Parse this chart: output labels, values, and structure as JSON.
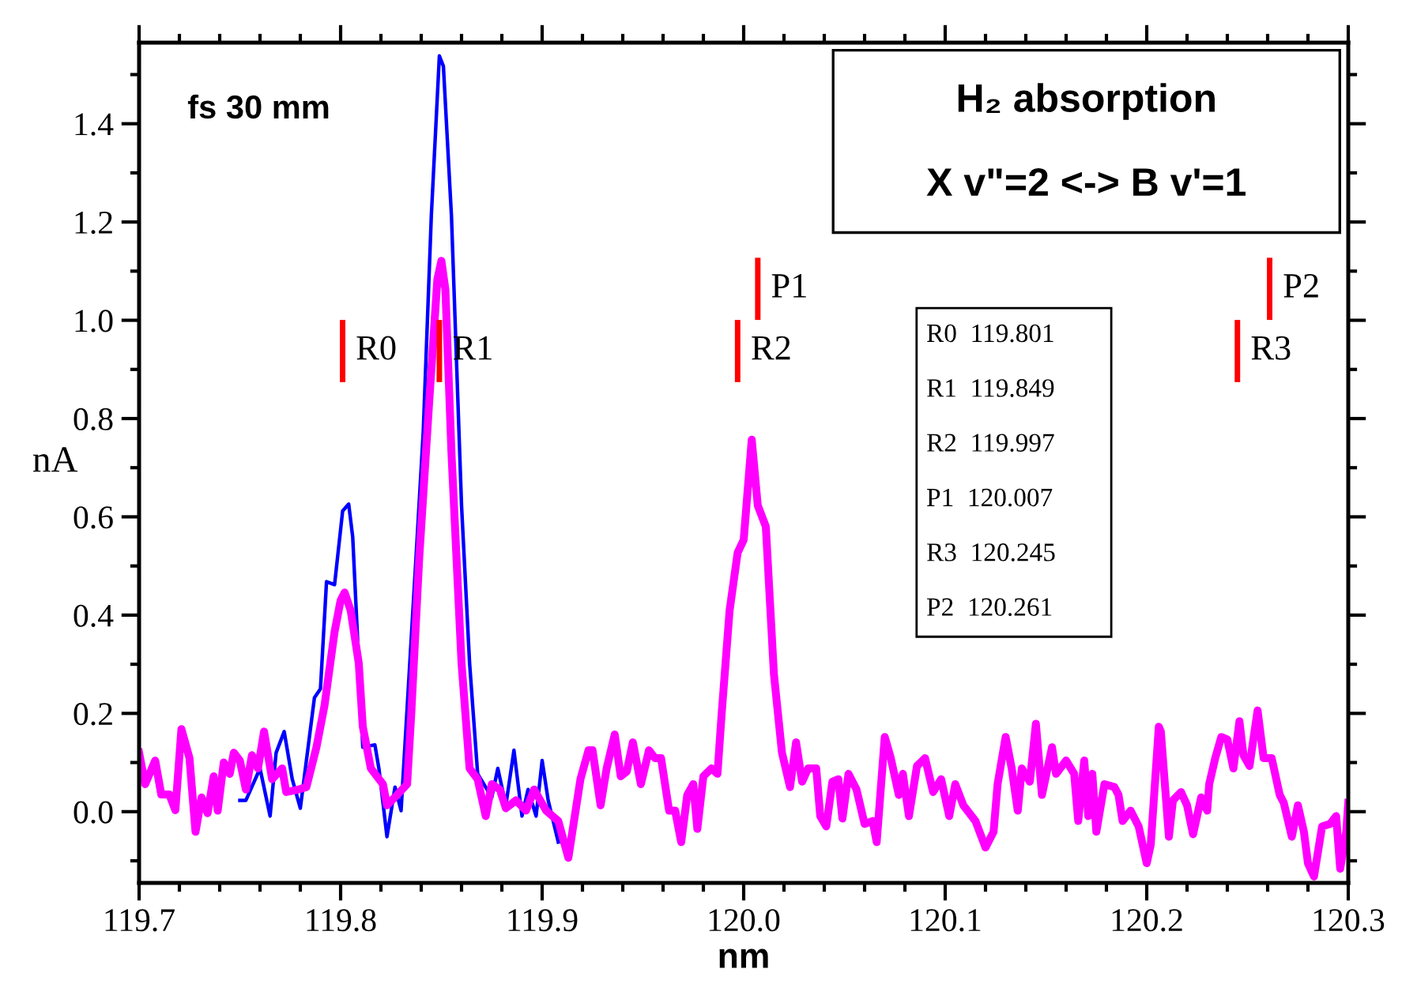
{
  "chart_data": {
    "type": "line",
    "title": "H₂ absorption",
    "subtitle": "X v\"=2 <-> B v'=1",
    "xlabel": "nm",
    "ylabel": "nA",
    "xlim": [
      119.7,
      120.3
    ],
    "ylim": [
      -0.145,
      1.565
    ],
    "xticks": [
      119.7,
      {
        "value": 119.72,
        "label": null
      },
      {
        "value": 119.74,
        "label": null
      },
      {
        "value": 119.76,
        "label": null
      },
      {
        "value": 119.78,
        "label": null
      },
      119.8,
      {
        "value": 119.82,
        "label": null
      },
      {
        "value": 119.84,
        "label": null
      },
      {
        "value": 119.86,
        "label": null
      },
      {
        "value": 119.88,
        "label": null
      },
      119.9,
      {
        "value": 119.92,
        "label": null
      },
      {
        "value": 119.94,
        "label": null
      },
      {
        "value": 119.96,
        "label": null
      },
      {
        "value": 119.98,
        "label": null
      },
      {
        "value": 120.0,
        "label": "120.0"
      },
      {
        "value": 120.02,
        "label": null
      },
      {
        "value": 120.04,
        "label": null
      },
      {
        "value": 120.06,
        "label": null
      },
      {
        "value": 120.08,
        "label": null
      },
      120.1,
      {
        "value": 120.12,
        "label": null
      },
      {
        "value": 120.14,
        "label": null
      },
      {
        "value": 120.16,
        "label": null
      },
      {
        "value": 120.18,
        "label": null
      },
      120.2,
      {
        "value": 120.22,
        "label": null
      },
      {
        "value": 120.24,
        "label": null
      },
      {
        "value": 120.26,
        "label": null
      },
      {
        "value": 120.28,
        "label": null
      },
      120.3
    ],
    "yticks": [
      {
        "value": -0.1,
        "label": null
      },
      {
        "value": 0.0,
        "label": "0.0"
      },
      {
        "value": 0.1,
        "label": null
      },
      0.2,
      {
        "value": 0.3,
        "label": null
      },
      0.4,
      {
        "value": 0.5,
        "label": null
      },
      0.6,
      {
        "value": 0.7,
        "label": null
      },
      0.8,
      {
        "value": 0.9,
        "label": null
      },
      {
        "value": 1.0,
        "label": "1.0"
      },
      {
        "value": 1.1,
        "label": null
      },
      1.2,
      {
        "value": 1.3,
        "label": null
      },
      1.4,
      {
        "value": 1.5,
        "label": null
      }
    ],
    "grid": false,
    "legend": false,
    "marker": "none",
    "line_style": "solid",
    "series": [
      {
        "color": "#0000ff",
        "x": [
          119.75,
          119.753,
          119.76,
          119.765,
          119.768,
          119.772,
          119.776,
          119.78,
          119.787,
          119.79,
          119.793,
          119.797,
          119.801,
          119.804,
          119.806,
          119.811,
          119.817,
          119.819,
          119.823,
          119.827,
          119.83,
          119.838,
          119.841,
          119.845,
          119.849,
          119.851,
          119.855,
          119.86,
          119.864,
          119.868,
          119.875,
          119.878,
          119.882,
          119.886,
          119.89,
          119.893,
          119.897,
          119.9,
          119.903,
          119.908
        ],
        "values": [
          0.023,
          0.023,
          0.088,
          -0.009,
          0.12,
          0.163,
          0.066,
          0.007,
          0.232,
          0.25,
          0.468,
          0.462,
          0.612,
          0.626,
          0.559,
          0.131,
          0.136,
          0.088,
          -0.051,
          0.05,
          0.002,
          0.559,
          0.773,
          1.212,
          1.538,
          1.517,
          1.212,
          0.623,
          0.302,
          0.077,
          0.029,
          0.088,
          0.013,
          0.125,
          -0.009,
          0.045,
          -0.009,
          0.104,
          0.023,
          -0.062
        ]
      },
      {
        "color": "#ff00ff",
        "x": [
          119.7,
          119.703,
          119.708,
          119.711,
          119.715,
          119.718,
          119.721,
          119.725,
          119.728,
          119.731,
          119.734,
          119.737,
          119.739,
          119.742,
          119.745,
          119.747,
          119.75,
          119.753,
          119.756,
          119.759,
          119.762,
          119.766,
          119.771,
          119.773,
          119.779,
          119.783,
          119.788,
          119.792,
          119.797,
          119.8,
          119.802,
          119.805,
          119.809,
          119.811,
          119.815,
          119.821,
          119.823,
          119.828,
          119.833,
          119.835,
          119.839,
          119.844,
          119.848,
          119.85,
          119.852,
          119.855,
          119.86,
          119.864,
          119.868,
          119.872,
          119.875,
          119.879,
          119.882,
          119.887,
          119.892,
          119.896,
          119.902,
          119.908,
          119.913,
          119.919,
          119.923,
          119.925,
          119.929,
          119.932,
          119.936,
          119.939,
          119.942,
          119.945,
          119.949,
          119.953,
          119.956,
          119.959,
          119.963,
          119.966,
          119.969,
          119.972,
          119.975,
          119.977,
          119.98,
          119.984,
          119.987,
          119.989,
          119.993,
          119.997,
          120.0,
          120.004,
          120.007,
          120.011,
          120.015,
          120.019,
          120.023,
          120.026,
          120.029,
          120.032,
          120.036,
          120.038,
          120.041,
          120.044,
          120.047,
          120.049,
          120.052,
          120.056,
          120.06,
          120.064,
          120.066,
          120.07,
          120.073,
          120.077,
          120.079,
          120.082,
          120.086,
          120.09,
          120.094,
          120.098,
          120.102,
          120.105,
          120.109,
          120.115,
          120.12,
          120.124,
          120.126,
          120.13,
          120.133,
          120.136,
          120.138,
          120.142,
          120.145,
          120.148,
          120.153,
          120.155,
          120.16,
          120.164,
          120.166,
          120.169,
          120.171,
          120.173,
          120.175,
          120.179,
          120.184,
          120.186,
          120.188,
          120.192,
          120.196,
          120.2,
          120.202,
          120.206,
          120.207,
          120.211,
          120.213,
          120.217,
          120.22,
          120.223,
          120.227,
          120.23,
          120.231,
          120.234,
          120.237,
          120.24,
          120.243,
          120.246,
          120.248,
          120.251,
          120.255,
          120.258,
          120.262,
          120.266,
          120.268,
          120.272,
          120.275,
          120.278,
          120.28,
          120.283,
          120.287,
          120.291,
          120.294,
          120.296,
          120.299,
          120.3
        ],
        "values": [
          0.12,
          0.056,
          0.104,
          0.035,
          0.035,
          0.003,
          0.168,
          0.109,
          -0.041,
          0.029,
          -0.003,
          0.072,
          0.002,
          0.1,
          0.077,
          0.12,
          0.104,
          0.045,
          0.115,
          0.088,
          0.163,
          0.066,
          0.088,
          0.04,
          0.045,
          0.05,
          0.131,
          0.216,
          0.366,
          0.43,
          0.446,
          0.409,
          0.302,
          0.173,
          0.088,
          0.056,
          0.013,
          0.034,
          0.056,
          0.195,
          0.516,
          0.837,
          1.083,
          1.121,
          1.062,
          0.73,
          0.302,
          0.088,
          0.066,
          -0.009,
          0.056,
          0.045,
          0.007,
          0.023,
          0.002,
          0.045,
          0.002,
          -0.019,
          -0.094,
          0.066,
          0.125,
          0.125,
          0.013,
          0.088,
          0.157,
          0.072,
          0.082,
          0.141,
          0.056,
          0.125,
          0.109,
          0.109,
          0.002,
          0.002,
          -0.062,
          0.034,
          0.056,
          -0.035,
          0.072,
          0.088,
          0.077,
          0.195,
          0.409,
          0.527,
          0.553,
          0.757,
          0.623,
          0.58,
          0.28,
          0.12,
          0.05,
          0.141,
          0.061,
          0.088,
          0.088,
          -0.009,
          -0.03,
          0.061,
          0.066,
          -0.014,
          0.077,
          0.045,
          -0.025,
          -0.019,
          -0.062,
          0.152,
          0.109,
          0.034,
          0.077,
          -0.009,
          0.093,
          0.109,
          0.04,
          0.066,
          -0.009,
          0.056,
          0.013,
          -0.019,
          -0.073,
          -0.041,
          0.056,
          0.152,
          0.088,
          0.002,
          0.088,
          0.061,
          0.179,
          0.034,
          0.131,
          0.077,
          0.104,
          0.077,
          -0.019,
          0.104,
          -0.009,
          0.077,
          -0.041,
          0.056,
          0.05,
          0.034,
          -0.019,
          0.002,
          -0.03,
          -0.105,
          -0.067,
          0.173,
          0.163,
          -0.051,
          0.023,
          0.04,
          0.013,
          -0.046,
          0.029,
          0.002,
          0.056,
          0.109,
          0.152,
          0.147,
          0.088,
          0.184,
          0.115,
          0.093,
          0.206,
          0.109,
          0.109,
          0.034,
          0.018,
          -0.051,
          0.013,
          -0.041,
          -0.105,
          -0.132,
          -0.03,
          -0.025,
          -0.009,
          -0.116,
          -0.041,
          0.018
        ]
      }
    ],
    "ref_lines": [
      {
        "axis": "x",
        "value": 119.801,
        "label": "R0",
        "color": "#ff0000"
      },
      {
        "axis": "x",
        "value": 119.849,
        "label": "R1",
        "color": "#ff0000"
      },
      {
        "axis": "x",
        "value": 119.997,
        "label": "R2",
        "color": "#ff0000"
      },
      {
        "axis": "x",
        "value": 120.007,
        "label": "P1",
        "color": "#ff0000"
      },
      {
        "axis": "x",
        "value": 120.245,
        "label": "R3",
        "color": "#ff0000"
      },
      {
        "axis": "x",
        "value": 120.261,
        "label": "P2",
        "color": "#ff0000"
      }
    ],
    "annotations": [
      "fs 30 mm",
      "R0  119.801",
      "R1  119.849",
      "R2  119.997",
      "P1  120.007",
      "R3  120.245",
      "P2  120.261"
    ]
  }
}
